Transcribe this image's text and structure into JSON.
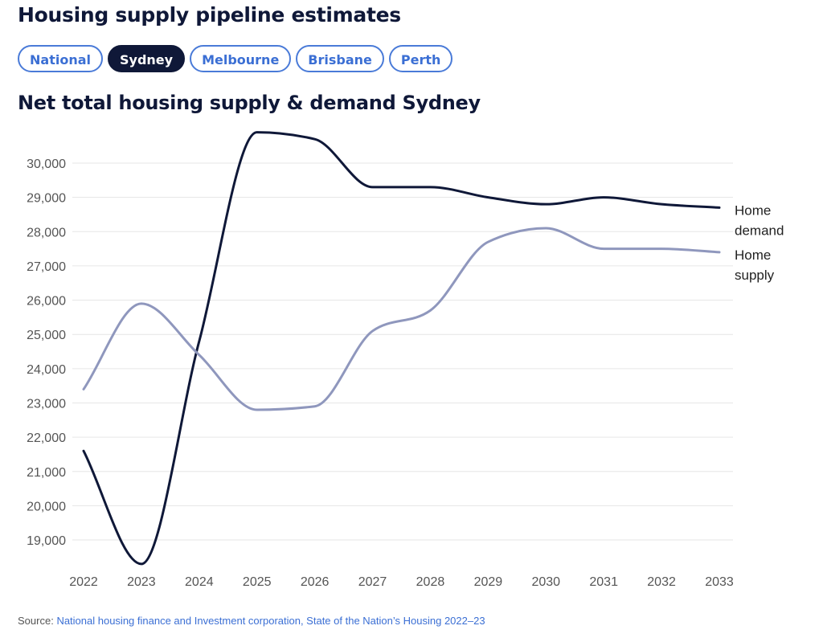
{
  "page_title": "Housing supply pipeline estimates",
  "tabs": [
    {
      "label": "National",
      "active": false
    },
    {
      "label": "Sydney",
      "active": true
    },
    {
      "label": "Melbourne",
      "active": false
    },
    {
      "label": "Brisbane",
      "active": false
    },
    {
      "label": "Perth",
      "active": false
    }
  ],
  "source": {
    "prefix": "Source:",
    "link_text": "National housing finance and Investment corporation, State of the Nation’s Housing 2022–23"
  },
  "colors": {
    "accent": "#3b6fd4",
    "demand": "#0f1838",
    "supply": "#8f97bd",
    "grid": "#e6e6e6"
  },
  "chart_data": {
    "type": "line",
    "title": "Net total housing supply & demand Sydney",
    "xlabel": "",
    "ylabel": "",
    "x": [
      2022,
      2023,
      2024,
      2025,
      2026,
      2027,
      2028,
      2029,
      2030,
      2031,
      2032,
      2033
    ],
    "yticks": [
      19000,
      20000,
      21000,
      22000,
      23000,
      24000,
      25000,
      26000,
      27000,
      28000,
      29000,
      30000
    ],
    "ytick_labels": [
      "19,000",
      "20,000",
      "21,000",
      "22,000",
      "23,000",
      "24,000",
      "25,000",
      "26,000",
      "27,000",
      "28,000",
      "29,000",
      "30,000"
    ],
    "ylim": [
      18000,
      31000
    ],
    "grid": true,
    "legend": "end-of-line labels",
    "series": [
      {
        "name": "Home demand",
        "label_lines": [
          "Home",
          "demand"
        ],
        "color": "#0f1838",
        "values": [
          21600,
          18300,
          24800,
          30900,
          30700,
          29300,
          29300,
          29000,
          28800,
          29000,
          28800,
          28700
        ]
      },
      {
        "name": "Home supply",
        "label_lines": [
          "Home",
          "supply"
        ],
        "color": "#8f97bd",
        "values": [
          23400,
          25900,
          24400,
          22800,
          22900,
          25100,
          25700,
          27700,
          28100,
          27500,
          27500,
          27400
        ]
      }
    ]
  }
}
